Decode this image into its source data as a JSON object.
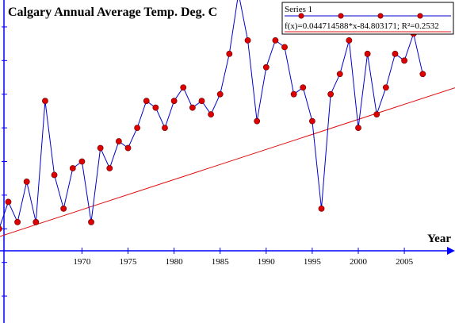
{
  "chart_data": {
    "type": "line",
    "title": "Calgary Annual Average Temp. Deg. C",
    "xlabel": "Year",
    "ylabel": "",
    "xlim": [
      1961.1,
      2010.5
    ],
    "ylim": [
      1.6,
      6.4
    ],
    "grid": false,
    "legend": "top-right",
    "x_ticks": [
      1970,
      1975,
      1980,
      1985,
      1990,
      1995,
      2000,
      2005
    ],
    "series": [
      {
        "name": "Series 1",
        "color": "#0000cc",
        "marker_color": "#dd0000",
        "x": [
          1961,
          1962,
          1963,
          1964,
          1965,
          1966,
          1967,
          1968,
          1969,
          1970,
          1971,
          1972,
          1973,
          1974,
          1975,
          1976,
          1977,
          1978,
          1979,
          1980,
          1981,
          1982,
          1983,
          1984,
          1985,
          1986,
          1987,
          1988,
          1989,
          1990,
          1991,
          1992,
          1993,
          1994,
          1995,
          1996,
          1997,
          1998,
          1999,
          2000,
          2001,
          2002,
          2003,
          2004,
          2005,
          2006,
          2007
        ],
        "y": [
          3.0,
          3.4,
          3.1,
          3.7,
          3.1,
          4.9,
          3.8,
          3.3,
          3.9,
          4.0,
          3.1,
          4.2,
          3.9,
          4.3,
          4.2,
          4.5,
          4.9,
          4.8,
          4.5,
          4.9,
          5.1,
          4.8,
          4.9,
          4.7,
          5.0,
          5.6,
          6.5,
          5.8,
          4.6,
          5.4,
          5.8,
          5.7,
          5.0,
          5.1,
          4.6,
          3.3,
          5.0,
          5.3,
          5.8,
          4.5,
          5.6,
          4.7,
          5.1,
          5.6,
          5.5,
          5.9,
          5.3
        ]
      },
      {
        "name": "f(x)=0.044714588*x-84.803171; R²=0.2532",
        "type": "trendline",
        "color": "#e01010",
        "slope": 0.044714588,
        "intercept": -84.803171,
        "r_squared": 0.2532
      }
    ]
  }
}
